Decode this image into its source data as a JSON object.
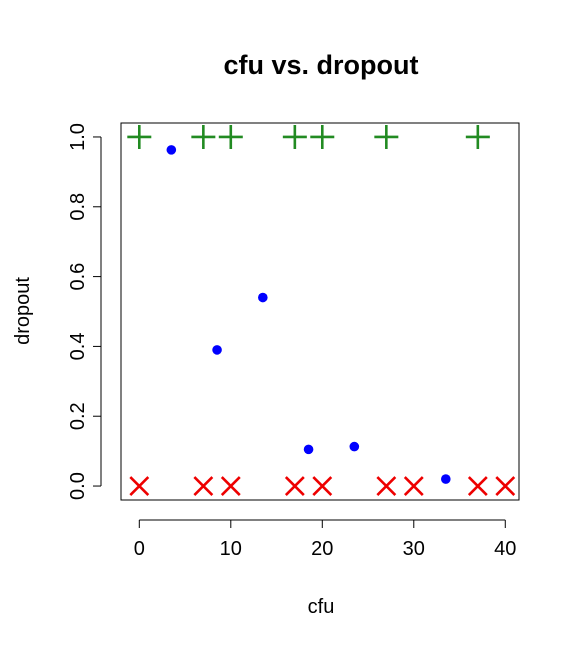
{
  "chart_data": {
    "type": "scatter",
    "title": "cfu vs. dropout",
    "xlabel": "cfu",
    "ylabel": "dropout",
    "xlim": [
      -2,
      41.5
    ],
    "ylim": [
      -0.04,
      1.04
    ],
    "x_ticks": [
      0,
      10,
      20,
      30,
      40
    ],
    "y_ticks": [
      0.0,
      0.2,
      0.4,
      0.6,
      0.8,
      1.0
    ],
    "x_tick_labels": [
      "0",
      "10",
      "20",
      "30",
      "40"
    ],
    "y_tick_labels": [
      "0.0",
      "0.2",
      "0.4",
      "0.6",
      "0.8",
      "1.0"
    ],
    "grid": false,
    "series": [
      {
        "marker": "plus",
        "color": "#228B22",
        "points": [
          {
            "x": 0,
            "y": 1.0
          },
          {
            "x": 7,
            "y": 1.0
          },
          {
            "x": 10,
            "y": 1.0
          },
          {
            "x": 17,
            "y": 1.0
          },
          {
            "x": 20,
            "y": 1.0
          },
          {
            "x": 27,
            "y": 1.0
          },
          {
            "x": 37,
            "y": 1.0
          }
        ]
      },
      {
        "marker": "circle",
        "color": "#0000FF",
        "points": [
          {
            "x": 3.5,
            "y": 0.963
          },
          {
            "x": 8.5,
            "y": 0.39
          },
          {
            "x": 13.5,
            "y": 0.54
          },
          {
            "x": 18.5,
            "y": 0.105
          },
          {
            "x": 23.5,
            "y": 0.113
          },
          {
            "x": 33.5,
            "y": 0.02
          }
        ]
      },
      {
        "marker": "cross",
        "color": "#EE0000",
        "points": [
          {
            "x": 0,
            "y": 0.0
          },
          {
            "x": 7,
            "y": 0.0
          },
          {
            "x": 10,
            "y": 0.0
          },
          {
            "x": 17,
            "y": 0.0
          },
          {
            "x": 20,
            "y": 0.0
          },
          {
            "x": 27,
            "y": 0.0
          },
          {
            "x": 30,
            "y": 0.0
          },
          {
            "x": 37,
            "y": 0.0
          },
          {
            "x": 40,
            "y": 0.0
          }
        ]
      }
    ]
  }
}
